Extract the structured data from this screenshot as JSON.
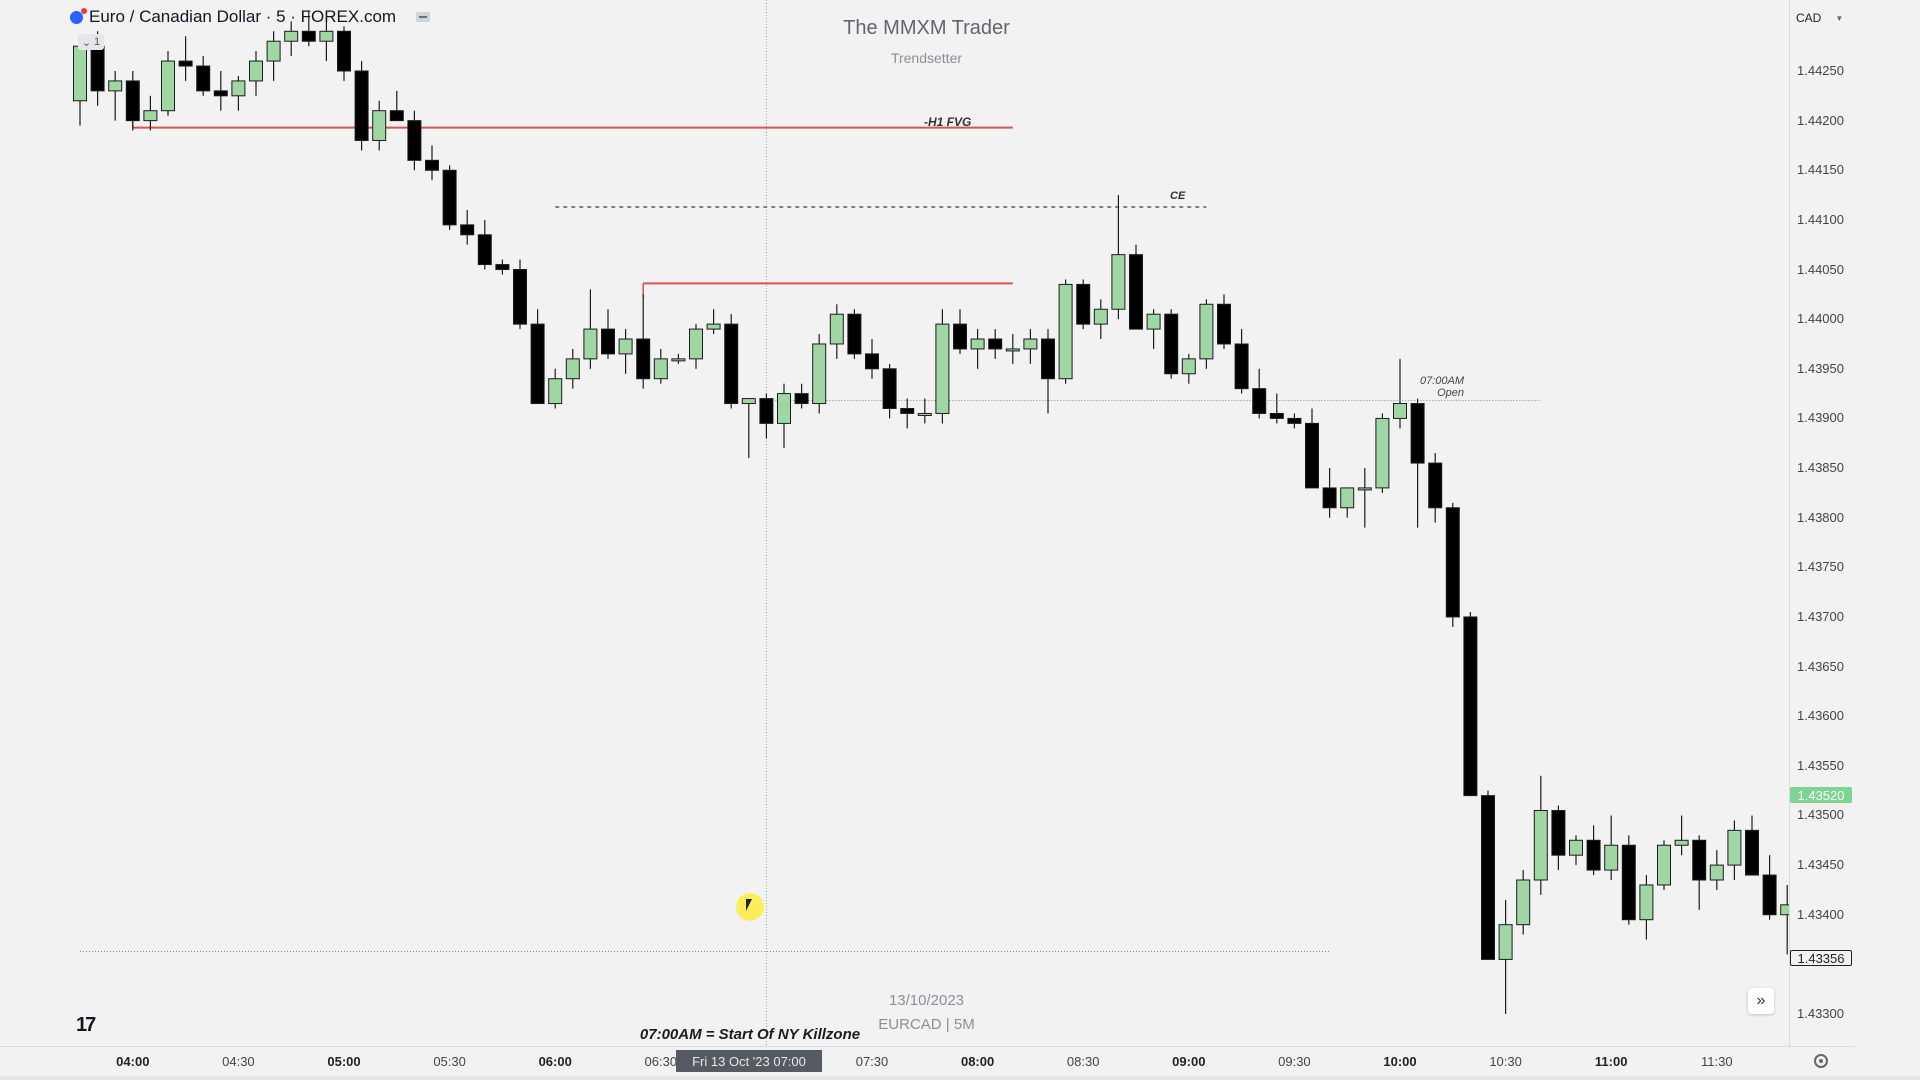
{
  "window": {
    "symbol_title": "Euro / Canadian Dollar · 5 · FOREX.com",
    "legend_count": "1",
    "currency": "CAD"
  },
  "watermark": {
    "title": "The MMXM Trader",
    "subtitle": "Trendsetter",
    "date": "13/10/2023",
    "symbol": "EURCAD | 5M"
  },
  "annotations": {
    "fvg": "-H1 FVG",
    "ce": "CE",
    "open_time": "07:00AM",
    "open_label": "Open",
    "killzone_note": "07:00AM = Start Of NY Killzone"
  },
  "price_axis": {
    "labels": [
      "1.44250",
      "1.44200",
      "1.44150",
      "1.44100",
      "1.44050",
      "1.44000",
      "1.43950",
      "1.43900",
      "1.43850",
      "1.43800",
      "1.43750",
      "1.43700",
      "1.43650",
      "1.43600",
      "1.43550",
      "1.43500",
      "1.43450",
      "1.43400",
      "1.43300"
    ],
    "current_price": "1.43520",
    "last_price": "1.43356"
  },
  "time_axis": {
    "labels": [
      {
        "t": "04:00",
        "major": true
      },
      {
        "t": "04:30",
        "major": false
      },
      {
        "t": "05:00",
        "major": true
      },
      {
        "t": "05:30",
        "major": false
      },
      {
        "t": "06:00",
        "major": true
      },
      {
        "t": "06:30",
        "major": false
      },
      {
        "t": "07:30",
        "major": false
      },
      {
        "t": "08:00",
        "major": true
      },
      {
        "t": "08:30",
        "major": false
      },
      {
        "t": "09:00",
        "major": true
      },
      {
        "t": "09:30",
        "major": false
      },
      {
        "t": "10:00",
        "major": true
      },
      {
        "t": "10:30",
        "major": false
      },
      {
        "t": "11:00",
        "major": true
      },
      {
        "t": "11:30",
        "major": false
      }
    ],
    "crosshair_label": "Fri 13 Oct '23  07:00"
  },
  "colors": {
    "bull": "#9fd6a4",
    "bear": "#000000",
    "fvg_line": "#d9534f",
    "price_tag": "#7ed491"
  },
  "chart_data": {
    "type": "candlestick",
    "title": "Euro / Canadian Dollar · 5 · FOREX.com",
    "x_start": "03:45",
    "interval_minutes": 5,
    "ylim": [
      1.4329,
      1.443
    ],
    "levels": [
      {
        "name": "-H1 FVG",
        "price": 1.44193,
        "from": "04:00",
        "to": "08:10"
      },
      {
        "name": "CE",
        "price": 1.44113,
        "from": "06:00",
        "to": "09:05",
        "style": "dashed"
      },
      {
        "name": "",
        "price": 1.44036,
        "from": "06:25",
        "to": "08:10"
      },
      {
        "name": "07:00AM Open",
        "price": 1.43918,
        "from": "07:00",
        "to": "10:40",
        "style": "dotted"
      },
      {
        "name": "",
        "price": 1.43363,
        "from": "03:45",
        "to": "09:40",
        "style": "dotted"
      }
    ],
    "candles": [
      [
        1.4422,
        1.44285,
        1.44195,
        1.44275
      ],
      [
        1.44275,
        1.4429,
        1.44215,
        1.4423
      ],
      [
        1.4423,
        1.4425,
        1.442,
        1.4424
      ],
      [
        1.4424,
        1.4425,
        1.4419,
        1.442
      ],
      [
        1.442,
        1.44225,
        1.4419,
        1.4421
      ],
      [
        1.4421,
        1.4427,
        1.44205,
        1.4426
      ],
      [
        1.4426,
        1.44285,
        1.4424,
        1.44255
      ],
      [
        1.44255,
        1.44265,
        1.44225,
        1.4423
      ],
      [
        1.4423,
        1.4425,
        1.4421,
        1.44225
      ],
      [
        1.44225,
        1.44245,
        1.4421,
        1.4424
      ],
      [
        1.4424,
        1.4427,
        1.44225,
        1.4426
      ],
      [
        1.4426,
        1.4429,
        1.4424,
        1.4428
      ],
      [
        1.4428,
        1.443,
        1.44265,
        1.4429
      ],
      [
        1.4429,
        1.4431,
        1.44275,
        1.4428
      ],
      [
        1.4428,
        1.443,
        1.4426,
        1.4429
      ],
      [
        1.4429,
        1.44295,
        1.4424,
        1.4425
      ],
      [
        1.4425,
        1.4426,
        1.4417,
        1.4418
      ],
      [
        1.4418,
        1.4422,
        1.4417,
        1.4421
      ],
      [
        1.4421,
        1.4423,
        1.442,
        1.442
      ],
      [
        1.442,
        1.4421,
        1.4415,
        1.4416
      ],
      [
        1.4416,
        1.44175,
        1.4414,
        1.4415
      ],
      [
        1.4415,
        1.44155,
        1.4409,
        1.44095
      ],
      [
        1.44095,
        1.4411,
        1.44075,
        1.44085
      ],
      [
        1.44085,
        1.441,
        1.4405,
        1.44055
      ],
      [
        1.44055,
        1.4406,
        1.44045,
        1.4405
      ],
      [
        1.4405,
        1.4406,
        1.4399,
        1.43995
      ],
      [
        1.43995,
        1.4401,
        1.43915,
        1.43915
      ],
      [
        1.43915,
        1.4395,
        1.4391,
        1.4394
      ],
      [
        1.4394,
        1.4397,
        1.4393,
        1.4396
      ],
      [
        1.4396,
        1.4403,
        1.4395,
        1.4399
      ],
      [
        1.4399,
        1.4401,
        1.4396,
        1.43965
      ],
      [
        1.43965,
        1.4399,
        1.43945,
        1.4398
      ],
      [
        1.4398,
        1.44025,
        1.4393,
        1.4394
      ],
      [
        1.4394,
        1.4397,
        1.43935,
        1.4396
      ],
      [
        1.4396,
        1.43965,
        1.43955,
        1.4396
      ],
      [
        1.4396,
        1.43995,
        1.4395,
        1.4399
      ],
      [
        1.4399,
        1.4401,
        1.43985,
        1.43995
      ],
      [
        1.43995,
        1.44005,
        1.4391,
        1.43915
      ],
      [
        1.43915,
        1.4392,
        1.4386,
        1.4392
      ],
      [
        1.4392,
        1.43925,
        1.4388,
        1.43895
      ],
      [
        1.43895,
        1.43935,
        1.4387,
        1.43925
      ],
      [
        1.43925,
        1.43935,
        1.4391,
        1.43915
      ],
      [
        1.43915,
        1.43985,
        1.43905,
        1.43975
      ],
      [
        1.43975,
        1.44015,
        1.4396,
        1.44005
      ],
      [
        1.44005,
        1.4401,
        1.4396,
        1.43965
      ],
      [
        1.43965,
        1.4398,
        1.4394,
        1.4395
      ],
      [
        1.4395,
        1.43955,
        1.439,
        1.4391
      ],
      [
        1.4391,
        1.4392,
        1.4389,
        1.43905
      ],
      [
        1.43905,
        1.4392,
        1.43895,
        1.43905
      ],
      [
        1.43905,
        1.4401,
        1.43895,
        1.43995
      ],
      [
        1.43995,
        1.4401,
        1.43965,
        1.4397
      ],
      [
        1.4397,
        1.4399,
        1.4395,
        1.4398
      ],
      [
        1.4398,
        1.4399,
        1.4396,
        1.4397
      ],
      [
        1.4397,
        1.43985,
        1.43955,
        1.4397
      ],
      [
        1.4397,
        1.4399,
        1.43955,
        1.4398
      ],
      [
        1.4398,
        1.4399,
        1.43905,
        1.4394
      ],
      [
        1.4394,
        1.4404,
        1.43935,
        1.44035
      ],
      [
        1.44035,
        1.4404,
        1.4399,
        1.43995
      ],
      [
        1.43995,
        1.4402,
        1.4398,
        1.4401
      ],
      [
        1.4401,
        1.44125,
        1.44,
        1.44065
      ],
      [
        1.44065,
        1.44075,
        1.4399,
        1.4399
      ],
      [
        1.4399,
        1.4401,
        1.4397,
        1.44005
      ],
      [
        1.44005,
        1.4401,
        1.4394,
        1.43945
      ],
      [
        1.43945,
        1.43965,
        1.43935,
        1.4396
      ],
      [
        1.4396,
        1.4402,
        1.4395,
        1.44015
      ],
      [
        1.44015,
        1.44025,
        1.4397,
        1.43975
      ],
      [
        1.43975,
        1.4399,
        1.43925,
        1.4393
      ],
      [
        1.4393,
        1.4395,
        1.439,
        1.43905
      ],
      [
        1.43905,
        1.43925,
        1.43895,
        1.439
      ],
      [
        1.439,
        1.43905,
        1.4389,
        1.43895
      ],
      [
        1.43895,
        1.4391,
        1.4383,
        1.4383
      ],
      [
        1.4383,
        1.4385,
        1.438,
        1.4381
      ],
      [
        1.4381,
        1.4383,
        1.438,
        1.4383
      ],
      [
        1.4383,
        1.4385,
        1.4379,
        1.4383
      ],
      [
        1.4383,
        1.43905,
        1.43825,
        1.439
      ],
      [
        1.439,
        1.4396,
        1.4389,
        1.43915
      ],
      [
        1.43915,
        1.4392,
        1.4379,
        1.43855
      ],
      [
        1.43855,
        1.43865,
        1.43795,
        1.4381
      ],
      [
        1.4381,
        1.43815,
        1.4369,
        1.437
      ],
      [
        1.437,
        1.43705,
        1.4352,
        1.4352
      ],
      [
        1.4352,
        1.43525,
        1.43355,
        1.43355
      ],
      [
        1.43355,
        1.43415,
        1.433,
        1.4339
      ],
      [
        1.4339,
        1.43445,
        1.4338,
        1.43435
      ],
      [
        1.43435,
        1.4354,
        1.4342,
        1.43505
      ],
      [
        1.43505,
        1.4351,
        1.43445,
        1.4346
      ],
      [
        1.4346,
        1.4348,
        1.4345,
        1.43475
      ],
      [
        1.43475,
        1.4349,
        1.4344,
        1.43445
      ],
      [
        1.43445,
        1.435,
        1.43435,
        1.4347
      ],
      [
        1.4347,
        1.4348,
        1.4339,
        1.43395
      ],
      [
        1.43395,
        1.4344,
        1.43375,
        1.4343
      ],
      [
        1.4343,
        1.43475,
        1.43425,
        1.4347
      ],
      [
        1.4347,
        1.435,
        1.4346,
        1.43475
      ],
      [
        1.43475,
        1.4348,
        1.43405,
        1.43435
      ],
      [
        1.43435,
        1.43465,
        1.43425,
        1.4345
      ],
      [
        1.4345,
        1.43495,
        1.43435,
        1.43485
      ],
      [
        1.43485,
        1.435,
        1.4344,
        1.4344
      ],
      [
        1.4344,
        1.4346,
        1.43395,
        1.434
      ],
      [
        1.434,
        1.4343,
        1.4336,
        1.4341
      ],
      [
        1.4341,
        1.4342,
        1.4335,
        1.43375
      ],
      [
        1.43375,
        1.4346,
        1.4335,
        1.43356
      ]
    ]
  }
}
